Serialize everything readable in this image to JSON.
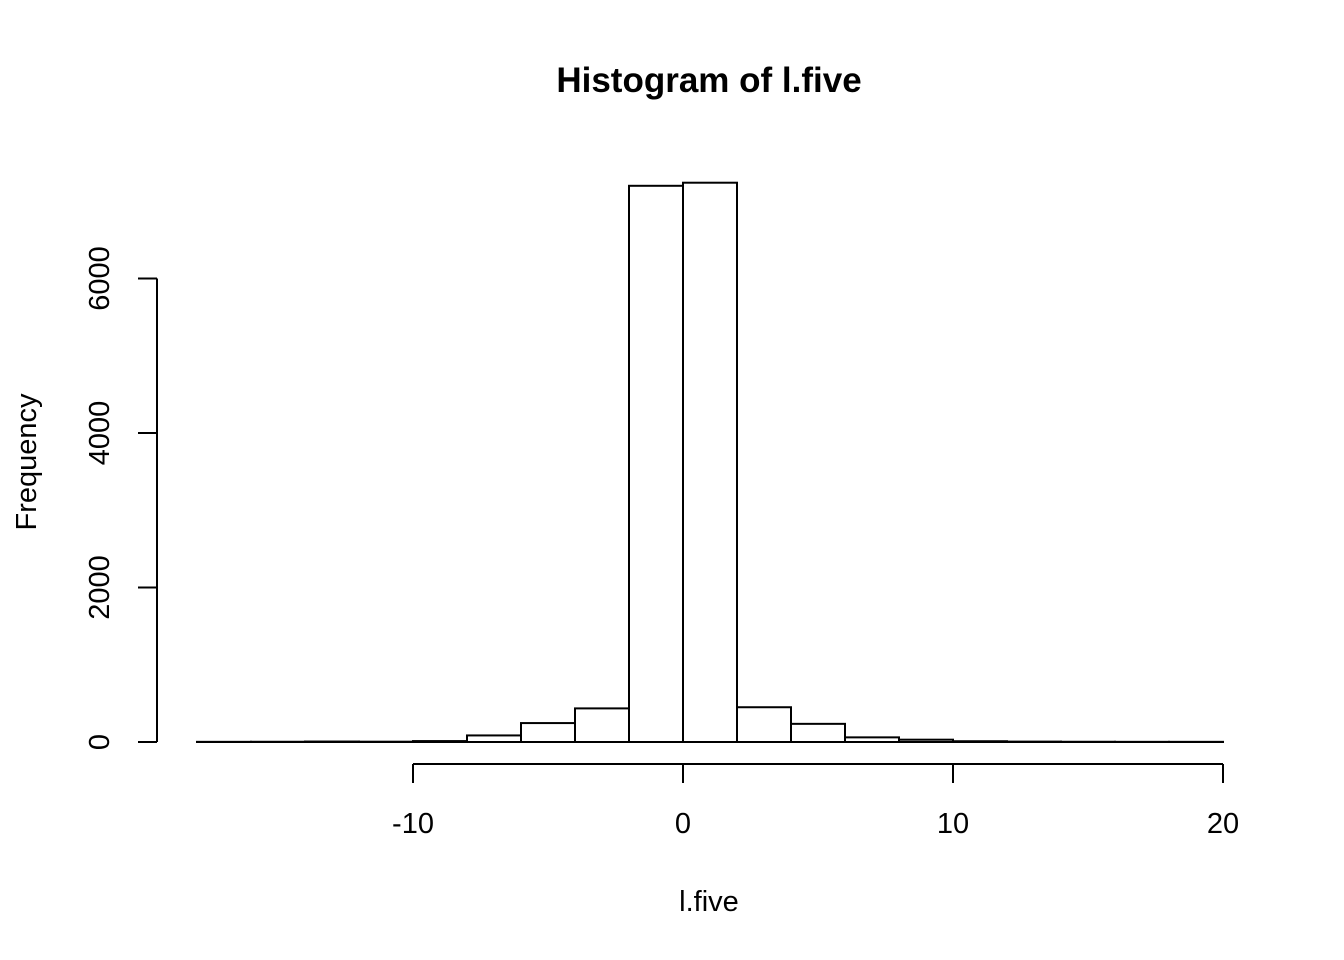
{
  "chart_data": {
    "type": "bar",
    "title": "Histogram of l.five",
    "xlabel": "l.five",
    "ylabel": "Frequency",
    "bin_edges": [
      -18,
      -16,
      -14,
      -12,
      -10,
      -8,
      -6,
      -4,
      -2,
      0,
      2,
      4,
      6,
      8,
      10,
      12,
      14,
      16,
      18,
      20
    ],
    "values": [
      2,
      3,
      6,
      4,
      12,
      85,
      245,
      435,
      7200,
      7240,
      450,
      235,
      60,
      30,
      10,
      5,
      3,
      2,
      2
    ],
    "xlim": [
      -20,
      20
    ],
    "ylim": [
      0,
      7240
    ],
    "x_ticks": [
      -10,
      0,
      10,
      20
    ],
    "x_tick_labels": [
      "-10",
      "0",
      "10",
      "20"
    ],
    "y_ticks": [
      0,
      2000,
      4000,
      6000
    ],
    "y_tick_labels": [
      "0",
      "2000",
      "4000",
      "6000"
    ],
    "grid": false,
    "colors": {
      "bar_fill": "#ffffff",
      "bar_stroke": "#000000"
    }
  }
}
